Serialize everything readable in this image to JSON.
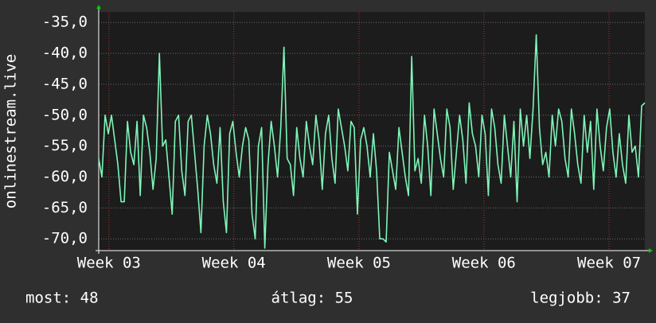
{
  "chart_data": {
    "type": "line",
    "y_label": "onlinestream.live",
    "series": [
      {
        "name": "onlinestream.live",
        "color": "#7ef5b8",
        "values": [
          -57,
          -60,
          -50,
          -53,
          -50,
          -54,
          -58,
          -64,
          -64,
          -51,
          -56,
          -58,
          -51,
          -63,
          -50,
          -52,
          -56,
          -62,
          -57,
          -40,
          -55,
          -54,
          -60,
          -66,
          -51,
          -50,
          -59,
          -63,
          -51,
          -50,
          -56,
          -62,
          -69,
          -55,
          -50,
          -53,
          -58,
          -61,
          -52,
          -64,
          -69,
          -53,
          -51,
          -56,
          -60,
          -55,
          -52,
          -54,
          -66,
          -70,
          -55,
          -52,
          -71.5,
          -58,
          -51,
          -55,
          -60,
          -52,
          -39,
          -57,
          -58,
          -63,
          -52,
          -57,
          -60,
          -51,
          -55,
          -58,
          -50,
          -54,
          -62,
          -53,
          -50,
          -57,
          -61,
          -49,
          -52,
          -55,
          -59,
          -51,
          -52,
          -66,
          -54,
          -52,
          -55,
          -60,
          -53,
          -59,
          -70,
          -70,
          -70.5,
          -56,
          -59,
          -62,
          -52,
          -56,
          -60,
          -63,
          -40.5,
          -59,
          -57,
          -61,
          -50,
          -55,
          -63,
          -49,
          -53,
          -57,
          -60,
          -49,
          -52,
          -62,
          -56,
          -50,
          -54,
          -61,
          -48,
          -53,
          -55,
          -60,
          -50,
          -53,
          -63,
          -49,
          -52,
          -58,
          -61,
          -50,
          -55,
          -60,
          -51,
          -64,
          -49,
          -55,
          -50,
          -57,
          -49,
          -37,
          -52,
          -58,
          -56,
          -60,
          -50,
          -55,
          -49,
          -51,
          -57,
          -60,
          -49,
          -53,
          -58,
          -61,
          -50,
          -56,
          -51,
          -62,
          -49,
          -55,
          -59,
          -52,
          -49,
          -56,
          -60,
          -53,
          -58,
          -61,
          -50,
          -56,
          -55,
          -60,
          -48.5,
          -48
        ]
      }
    ],
    "xlim": [
      0,
      171
    ],
    "xticks": [
      {
        "value": 3.2,
        "label": "Week 03"
      },
      {
        "value": 42.3,
        "label": "Week 04"
      },
      {
        "value": 81.5,
        "label": "Week 05"
      },
      {
        "value": 120.6,
        "label": "Week 06"
      },
      {
        "value": 159.8,
        "label": "Week 07"
      }
    ],
    "ylim": [
      -71.9,
      -33.3
    ],
    "yticks": [
      {
        "value": -35,
        "label": "-35,0"
      },
      {
        "value": -40,
        "label": "-40,0"
      },
      {
        "value": -45,
        "label": "-45,0"
      },
      {
        "value": -50,
        "label": "-50,0"
      },
      {
        "value": -55,
        "label": "-55,0"
      },
      {
        "value": -60,
        "label": "-60,0"
      },
      {
        "value": -65,
        "label": "-65,0"
      },
      {
        "value": -70,
        "label": "-70,0"
      }
    ],
    "grid": true,
    "footer": [
      "most: 48",
      "átlag: 55",
      "legjobb: 37"
    ]
  }
}
